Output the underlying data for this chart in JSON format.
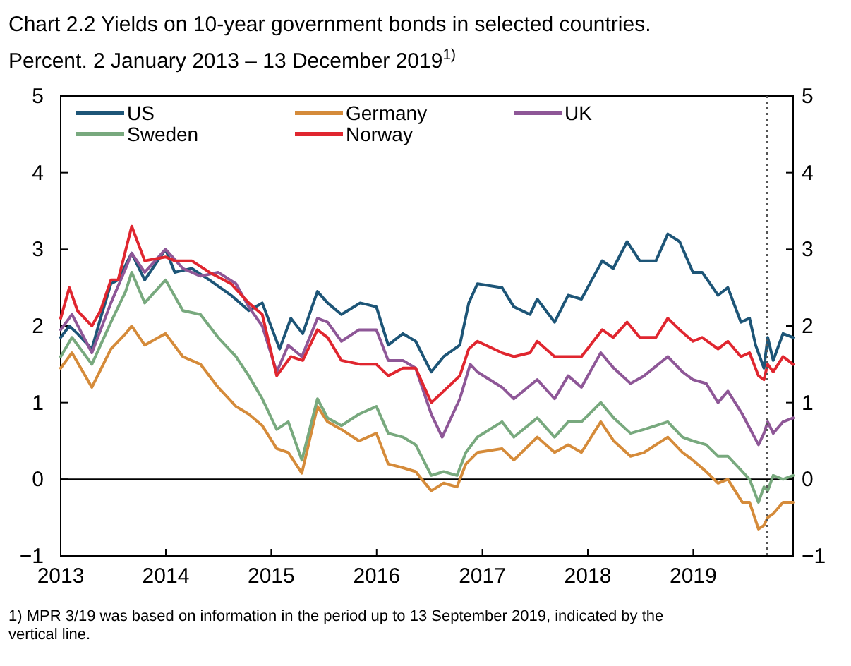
{
  "chart_data": {
    "type": "line",
    "title": "Chart 2.2 Yields on 10-year government bonds in selected countries.",
    "subtitle": "Percent. 2 January 2013 – 13 December 2019$^{1)}$",
    "xlim": [
      "2013-01-02",
      "2019-12-13"
    ],
    "xticks": [
      {
        "value": "2013-01-02",
        "label": "2013"
      },
      {
        "value": "2014-01-01",
        "label": "2014"
      },
      {
        "value": "2015-01-01",
        "label": "2015"
      },
      {
        "value": "2016-01-01",
        "label": "2016"
      },
      {
        "value": "2017-01-01",
        "label": "2017"
      },
      {
        "value": "2018-01-01",
        "label": "2018"
      },
      {
        "value": "2019-01-01",
        "label": "2019"
      }
    ],
    "ylim": [
      -1,
      5
    ],
    "yticks": [
      {
        "value": -1,
        "label": "−1"
      },
      0,
      1,
      2,
      3,
      4,
      5
    ],
    "y2lim": [
      -1,
      5
    ],
    "y2ticks": [
      {
        "value": -1,
        "label": "−1"
      },
      0,
      1,
      2,
      3,
      4,
      5
    ],
    "grid": false,
    "legend": "top left",
    "line_style": "solid",
    "ref_lines": [
      {
        "axis": "y",
        "value": 0,
        "color": "#000000",
        "line_style": "solid"
      },
      {
        "axis": "x",
        "value": "2019-09-13",
        "color": "#555555",
        "line_style": "dotted"
      }
    ],
    "annotations": [
      "1) MPR 3/19 was based on information in the period up to 13 September 2019, indicated by the vertical line."
    ],
    "series": [
      {
        "name": "US",
        "color": "#1d5577",
        "x": [
          "2013-01-02",
          "2013-02-01",
          "2013-03-01",
          "2013-04-20",
          "2013-05-20",
          "2013-06-25",
          "2013-07-20",
          "2013-09-05",
          "2013-10-20",
          "2013-12-31",
          "2014-02-01",
          "2014-04-01",
          "2014-06-01",
          "2014-08-15",
          "2014-10-15",
          "2014-12-01",
          "2015-01-30",
          "2015-03-10",
          "2015-04-20",
          "2015-06-10",
          "2015-07-15",
          "2015-09-01",
          "2015-11-05",
          "2015-12-31",
          "2016-02-10",
          "2016-04-01",
          "2016-05-15",
          "2016-07-08",
          "2016-08-20",
          "2016-10-15",
          "2016-11-15",
          "2016-12-15",
          "2017-03-10",
          "2017-04-20",
          "2017-06-15",
          "2017-07-10",
          "2017-09-08",
          "2017-10-25",
          "2017-12-10",
          "2018-02-20",
          "2018-03-30",
          "2018-05-17",
          "2018-06-30",
          "2018-08-25",
          "2018-10-05",
          "2018-11-15",
          "2018-12-31",
          "2019-02-01",
          "2019-03-28",
          "2019-05-01",
          "2019-06-15",
          "2019-07-15",
          "2019-08-05",
          "2019-09-03",
          "2019-09-16",
          "2019-10-05",
          "2019-11-08",
          "2019-12-13"
        ],
        "values": [
          1.85,
          2.0,
          1.9,
          1.7,
          2.1,
          2.55,
          2.6,
          2.95,
          2.6,
          3.0,
          2.7,
          2.75,
          2.6,
          2.4,
          2.2,
          2.3,
          1.7,
          2.1,
          1.9,
          2.45,
          2.3,
          2.15,
          2.3,
          2.25,
          1.75,
          1.9,
          1.8,
          1.4,
          1.6,
          1.75,
          2.3,
          2.55,
          2.5,
          2.25,
          2.15,
          2.35,
          2.05,
          2.4,
          2.35,
          2.85,
          2.75,
          3.1,
          2.85,
          2.85,
          3.2,
          3.1,
          2.7,
          2.7,
          2.4,
          2.5,
          2.05,
          2.1,
          1.75,
          1.45,
          1.85,
          1.55,
          1.9,
          1.85
        ]
      },
      {
        "name": "Germany",
        "color": "#d58b3a",
        "x": [
          "2013-01-02",
          "2013-02-10",
          "2013-04-20",
          "2013-06-25",
          "2013-08-15",
          "2013-09-05",
          "2013-10-20",
          "2013-12-31",
          "2014-03-01",
          "2014-05-01",
          "2014-07-01",
          "2014-09-01",
          "2014-10-15",
          "2014-12-01",
          "2015-01-20",
          "2015-03-01",
          "2015-04-17",
          "2015-06-10",
          "2015-07-15",
          "2015-09-01",
          "2015-11-01",
          "2015-12-31",
          "2016-02-10",
          "2016-04-01",
          "2016-05-15",
          "2016-07-08",
          "2016-08-20",
          "2016-10-05",
          "2016-11-05",
          "2016-12-15",
          "2017-03-10",
          "2017-04-20",
          "2017-07-10",
          "2017-09-08",
          "2017-10-25",
          "2017-12-10",
          "2018-02-15",
          "2018-04-01",
          "2018-05-29",
          "2018-07-15",
          "2018-10-05",
          "2018-11-25",
          "2018-12-31",
          "2019-02-15",
          "2019-03-28",
          "2019-05-01",
          "2019-06-20",
          "2019-07-15",
          "2019-08-15",
          "2019-09-03",
          "2019-09-16",
          "2019-10-05",
          "2019-11-08",
          "2019-12-13"
        ],
        "values": [
          1.45,
          1.65,
          1.2,
          1.7,
          1.9,
          2.0,
          1.75,
          1.9,
          1.6,
          1.5,
          1.2,
          0.95,
          0.85,
          0.7,
          0.4,
          0.35,
          0.08,
          0.95,
          0.75,
          0.65,
          0.5,
          0.6,
          0.2,
          0.15,
          0.1,
          -0.15,
          -0.05,
          -0.1,
          0.2,
          0.35,
          0.4,
          0.25,
          0.55,
          0.35,
          0.45,
          0.35,
          0.75,
          0.5,
          0.3,
          0.35,
          0.55,
          0.35,
          0.25,
          0.1,
          -0.05,
          0.0,
          -0.3,
          -0.3,
          -0.65,
          -0.6,
          -0.5,
          -0.45,
          -0.3,
          -0.3
        ]
      },
      {
        "name": "UK",
        "color": "#8e5797",
        "x": [
          "2013-01-02",
          "2013-02-10",
          "2013-04-20",
          "2013-06-25",
          "2013-08-15",
          "2013-09-05",
          "2013-10-20",
          "2013-12-31",
          "2014-03-01",
          "2014-05-01",
          "2014-07-01",
          "2014-09-01",
          "2014-10-15",
          "2014-12-01",
          "2015-01-20",
          "2015-03-01",
          "2015-04-17",
          "2015-06-10",
          "2015-07-15",
          "2015-09-01",
          "2015-11-01",
          "2015-12-31",
          "2016-02-10",
          "2016-04-01",
          "2016-05-15",
          "2016-07-08",
          "2016-08-15",
          "2016-10-15",
          "2016-11-20",
          "2016-12-15",
          "2017-03-10",
          "2017-04-20",
          "2017-07-10",
          "2017-09-08",
          "2017-10-25",
          "2017-12-10",
          "2018-02-15",
          "2018-04-01",
          "2018-05-29",
          "2018-07-15",
          "2018-10-05",
          "2018-11-25",
          "2018-12-31",
          "2019-02-15",
          "2019-03-28",
          "2019-05-01",
          "2019-06-20",
          "2019-08-15",
          "2019-09-03",
          "2019-09-16",
          "2019-10-05",
          "2019-11-08",
          "2019-12-13"
        ],
        "values": [
          1.95,
          2.15,
          1.65,
          2.3,
          2.75,
          2.95,
          2.7,
          3.0,
          2.75,
          2.65,
          2.7,
          2.55,
          2.25,
          2.0,
          1.4,
          1.75,
          1.6,
          2.1,
          2.05,
          1.8,
          1.95,
          1.95,
          1.55,
          1.55,
          1.45,
          0.85,
          0.55,
          1.05,
          1.5,
          1.4,
          1.2,
          1.05,
          1.3,
          1.05,
          1.35,
          1.2,
          1.65,
          1.45,
          1.25,
          1.35,
          1.6,
          1.4,
          1.3,
          1.25,
          1.0,
          1.15,
          0.85,
          0.45,
          0.6,
          0.75,
          0.6,
          0.75,
          0.8
        ]
      },
      {
        "name": "Sweden",
        "color": "#78a97e",
        "x": [
          "2013-01-02",
          "2013-02-10",
          "2013-04-20",
          "2013-06-25",
          "2013-08-15",
          "2013-09-05",
          "2013-10-20",
          "2013-12-31",
          "2014-03-01",
          "2014-05-01",
          "2014-07-01",
          "2014-09-01",
          "2014-10-15",
          "2014-12-01",
          "2015-01-20",
          "2015-03-01",
          "2015-04-17",
          "2015-06-10",
          "2015-07-15",
          "2015-09-01",
          "2015-11-01",
          "2015-12-31",
          "2016-02-10",
          "2016-04-01",
          "2016-05-15",
          "2016-07-08",
          "2016-08-20",
          "2016-10-05",
          "2016-11-05",
          "2016-12-15",
          "2017-03-10",
          "2017-04-20",
          "2017-07-10",
          "2017-09-08",
          "2017-10-25",
          "2017-12-10",
          "2018-02-15",
          "2018-04-01",
          "2018-05-29",
          "2018-07-15",
          "2018-10-05",
          "2018-11-25",
          "2018-12-31",
          "2019-02-15",
          "2019-03-28",
          "2019-05-01",
          "2019-06-20",
          "2019-07-15",
          "2019-08-15",
          "2019-09-03",
          "2019-09-16",
          "2019-10-05",
          "2019-11-08",
          "2019-12-13"
        ],
        "values": [
          1.6,
          1.85,
          1.5,
          2.05,
          2.45,
          2.7,
          2.3,
          2.6,
          2.2,
          2.15,
          1.85,
          1.6,
          1.35,
          1.05,
          0.65,
          0.75,
          0.25,
          1.05,
          0.8,
          0.7,
          0.85,
          0.95,
          0.6,
          0.55,
          0.45,
          0.05,
          0.1,
          0.05,
          0.35,
          0.55,
          0.75,
          0.55,
          0.8,
          0.55,
          0.75,
          0.75,
          1.0,
          0.8,
          0.6,
          0.65,
          0.75,
          0.55,
          0.5,
          0.45,
          0.3,
          0.3,
          0.1,
          0.0,
          -0.3,
          -0.1,
          -0.15,
          0.05,
          0.0,
          0.05
        ]
      },
      {
        "name": "Norway",
        "color": "#e0262f",
        "x": [
          "2013-01-02",
          "2013-02-01",
          "2013-03-01",
          "2013-04-20",
          "2013-05-20",
          "2013-06-25",
          "2013-07-20",
          "2013-09-05",
          "2013-10-20",
          "2013-12-31",
          "2014-02-01",
          "2014-04-01",
          "2014-06-01",
          "2014-08-15",
          "2014-10-15",
          "2014-12-01",
          "2015-01-20",
          "2015-03-10",
          "2015-04-20",
          "2015-06-10",
          "2015-07-15",
          "2015-09-01",
          "2015-11-05",
          "2015-12-31",
          "2016-02-10",
          "2016-04-01",
          "2016-05-15",
          "2016-07-08",
          "2016-08-20",
          "2016-10-15",
          "2016-11-15",
          "2016-12-15",
          "2017-03-10",
          "2017-04-20",
          "2017-06-15",
          "2017-07-10",
          "2017-09-08",
          "2017-10-25",
          "2017-12-10",
          "2018-02-20",
          "2018-03-30",
          "2018-05-17",
          "2018-06-30",
          "2018-08-25",
          "2018-10-05",
          "2018-11-15",
          "2018-12-31",
          "2019-02-01",
          "2019-03-28",
          "2019-05-01",
          "2019-06-15",
          "2019-07-15",
          "2019-08-15",
          "2019-09-03",
          "2019-09-16",
          "2019-10-05",
          "2019-11-08",
          "2019-12-13"
        ],
        "values": [
          2.1,
          2.5,
          2.2,
          2.0,
          2.2,
          2.6,
          2.6,
          3.3,
          2.85,
          2.9,
          2.85,
          2.85,
          2.7,
          2.55,
          2.3,
          2.15,
          1.35,
          1.6,
          1.55,
          1.95,
          1.85,
          1.55,
          1.5,
          1.5,
          1.35,
          1.45,
          1.45,
          1.0,
          1.15,
          1.35,
          1.7,
          1.8,
          1.65,
          1.6,
          1.65,
          1.8,
          1.6,
          1.6,
          1.6,
          1.95,
          1.85,
          2.05,
          1.85,
          1.85,
          2.1,
          1.95,
          1.8,
          1.85,
          1.7,
          1.8,
          1.6,
          1.65,
          1.35,
          1.3,
          1.5,
          1.4,
          1.6,
          1.5
        ]
      }
    ]
  }
}
